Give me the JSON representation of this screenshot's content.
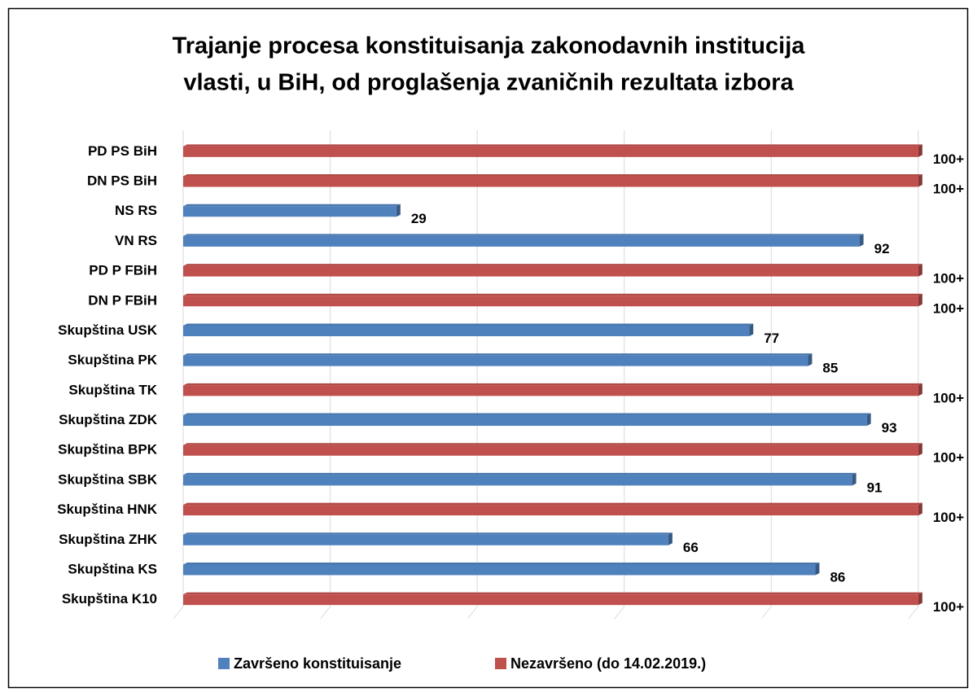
{
  "chart_data": {
    "type": "bar",
    "orientation": "horizontal",
    "title": [
      "Trajanje procesa konstituisanja zakonodavnih institucija",
      "vlasti, u BiH, od proglašenja zvaničnih rezultata izbora"
    ],
    "categories": [
      "PD PS BiH",
      "DN PS BiH",
      "NS RS",
      "VN RS",
      "PD P FBiH",
      "DN P FBiH",
      "Skupština USK",
      "Skupština PK",
      "Skupština TK",
      "Skupština ZDK",
      "Skupština BPK",
      "Skupština SBK",
      "Skupština HNK",
      "Skupština ZHK",
      "Skupština KS",
      "Skupština K10"
    ],
    "series": [
      {
        "name": "Završeno konstituisanje",
        "color": "#4f81bd",
        "values": [
          null,
          null,
          29,
          92,
          null,
          null,
          77,
          85,
          null,
          93,
          null,
          91,
          null,
          66,
          86,
          null
        ]
      },
      {
        "name": "Nezavršeno (do 14.02.2019.)",
        "color": "#c0504d",
        "values": [
          100,
          100,
          null,
          null,
          100,
          100,
          null,
          null,
          100,
          null,
          100,
          null,
          100,
          null,
          null,
          100
        ],
        "value_labels": [
          "100+",
          "100+",
          null,
          null,
          "100+",
          "100+",
          null,
          null,
          "100+",
          null,
          "100+",
          null,
          "100+",
          null,
          null,
          "100+"
        ]
      }
    ],
    "xlim": [
      0,
      105
    ],
    "xticks": [
      0,
      20,
      40,
      60,
      80,
      100
    ],
    "grid": true,
    "legend": "bottom"
  }
}
